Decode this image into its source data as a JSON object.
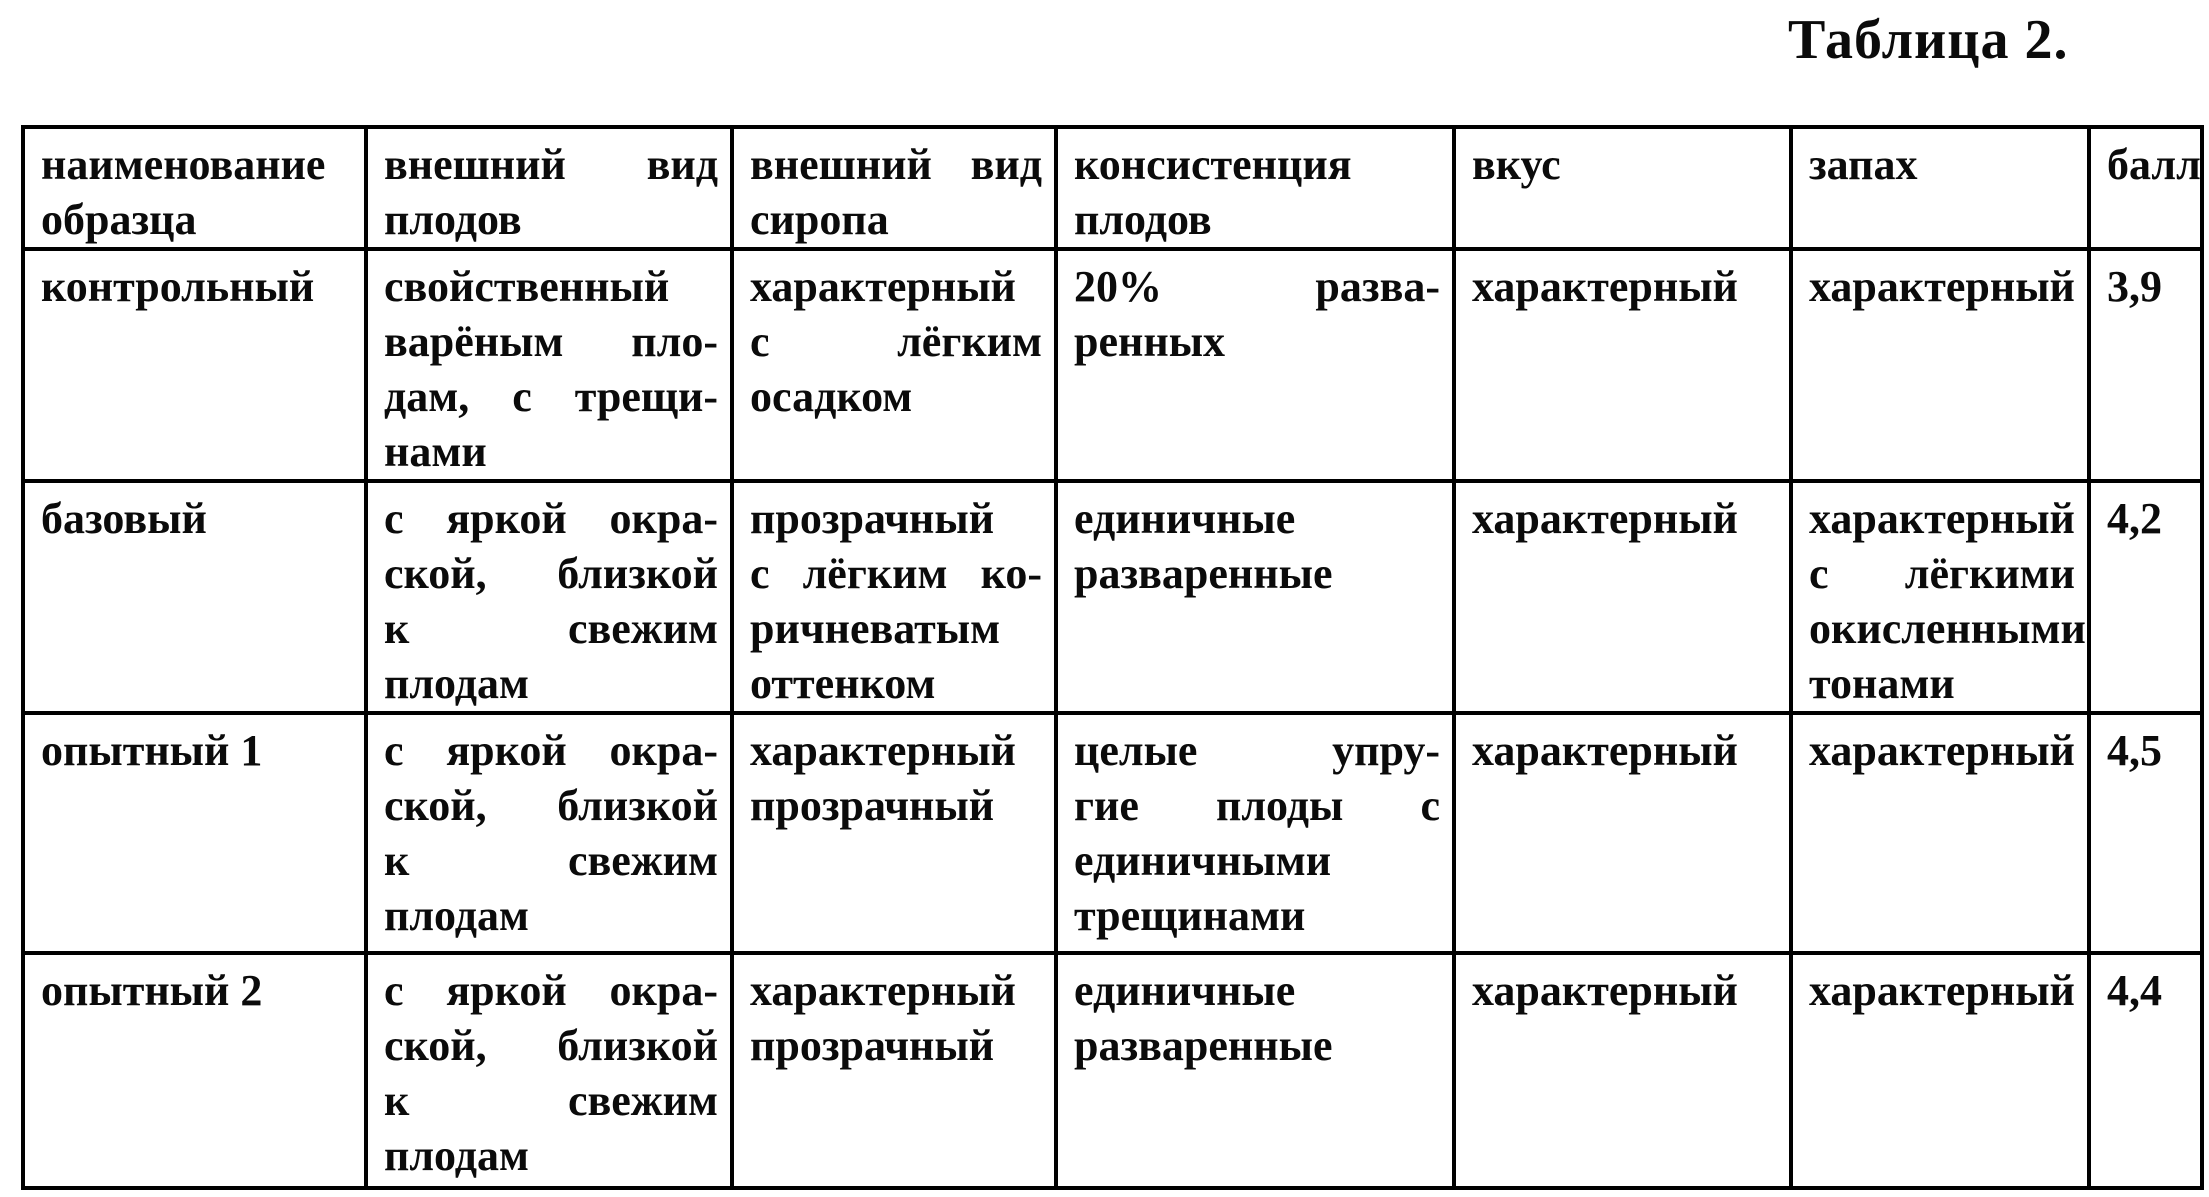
{
  "title": "Таблица 2.",
  "table": {
    "headers": [
      "наименование\nобразца",
      "внешний вид\nплодов",
      "внешний вид\nсиропа",
      "консистенция\nплодов",
      "вкус",
      "запах",
      "балл"
    ],
    "rows": [
      [
        "контрольный",
        "свойственный\nварёным пло-\nдам, с трещи-\nнами",
        "характерный\nс лёгким\nосадком",
        "20% разва-\nренных",
        "характерный",
        "характерный",
        "3,9"
      ],
      [
        "базовый",
        "с яркой окра-\nской, близкой\nк свежим\nплодам",
        "прозрачный\nс лёгким ко-\nричневатым\nоттенком",
        "единичные\nразваренные",
        "характерный",
        "характерный\nс лёгкими\nокисленными\nтонами",
        "4,2"
      ],
      [
        "опытный 1",
        "с яркой окра-\nской, близкой\nк свежим\nплодам",
        "характерный\nпрозрачный",
        "целые упру-\nгие плоды с\nединичными\nтрещинами",
        "характерный",
        "характерный",
        "4,5"
      ],
      [
        "опытный 2",
        "с яркой окра-\nской, близкой\nк свежим\nплодам",
        "характерный\nпрозрачный",
        "единичные\nразваренные",
        "характерный",
        "характерный",
        "4,4"
      ]
    ]
  }
}
